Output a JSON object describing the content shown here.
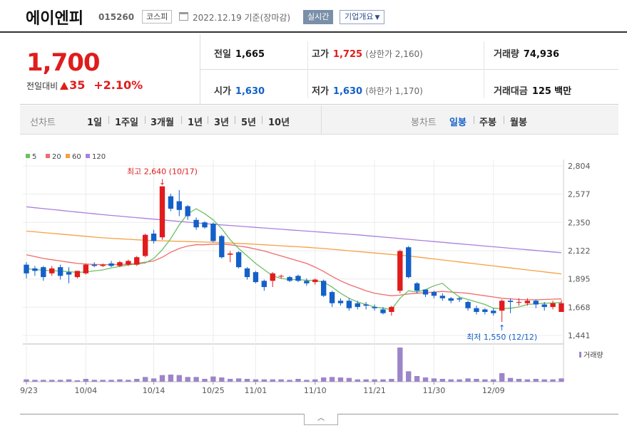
{
  "header": {
    "company_name": "에이엔피",
    "code": "015260",
    "market": "코스피",
    "date_text": "2022.12.19 기준(장마감)",
    "realtime_label": "실시간",
    "company_info_label": "기업개요"
  },
  "quote": {
    "price": "1,700",
    "change_label": "전일대비",
    "change_value": "35",
    "change_pct": "+2.10%",
    "prev_label": "전일",
    "prev_value": "1,665",
    "high_label": "고가",
    "high_value": "1,725",
    "upper_limit": "(상한가 2,160)",
    "volume_label": "거래량",
    "volume_value": "74,936",
    "open_label": "시가",
    "open_value": "1,630",
    "low_label": "저가",
    "low_value": "1,630",
    "lower_limit": "(하한가 1,170)",
    "amount_label": "거래대금",
    "amount_value": "125",
    "amount_unit": "백만"
  },
  "tabs": {
    "line_label": "선차트",
    "line_items": [
      "1일",
      "1주일",
      "3개월",
      "1년",
      "3년",
      "5년",
      "10년"
    ],
    "candle_label": "봉차트",
    "candle_items": [
      "일봉",
      "주봉",
      "월봉"
    ],
    "candle_active": 0
  },
  "colors": {
    "up": "#e01c1c",
    "down": "#1460c8",
    "ma5": "#6dc063",
    "ma20": "#f06c6c",
    "ma60": "#f5a142",
    "ma120": "#a97fe0",
    "volume": "#9d85c9"
  },
  "chart_data": {
    "type": "candlestick",
    "legend": [
      {
        "name": "5",
        "color": "#6dc063"
      },
      {
        "name": "20",
        "color": "#f06c6c"
      },
      {
        "name": "60",
        "color": "#f5a142"
      },
      {
        "name": "120",
        "color": "#a97fe0"
      }
    ],
    "y_ticks": [
      "2,804",
      "2,577",
      "2,350",
      "2,122",
      "1,895",
      "1,668",
      "1,441"
    ],
    "ylim": [
      1441,
      2804
    ],
    "x_ticks": [
      {
        "label": "09/23",
        "index": 0
      },
      {
        "label": "10/04",
        "index": 7
      },
      {
        "label": "10/14",
        "index": 15
      },
      {
        "label": "10/25",
        "index": 22
      },
      {
        "label": "11/01",
        "index": 27
      },
      {
        "label": "11/10",
        "index": 34
      },
      {
        "label": "11/21",
        "index": 41
      },
      {
        "label": "11/30",
        "index": 48
      },
      {
        "label": "12/09",
        "index": 55
      }
    ],
    "annotations": {
      "high": {
        "label": "최고 2,640 (10/17)",
        "index": 16,
        "value": 2640
      },
      "low": {
        "label": "최저 1,550 (12/12)",
        "index": 56,
        "value": 1550
      }
    },
    "volume_legend": "거래량",
    "candles": [
      {
        "o": 2010,
        "c": 1940,
        "h": 2030,
        "l": 1900,
        "v": 5
      },
      {
        "o": 1980,
        "c": 1960,
        "h": 2000,
        "l": 1920,
        "v": 4
      },
      {
        "o": 1990,
        "c": 1910,
        "h": 2000,
        "l": 1880,
        "v": 4
      },
      {
        "o": 1940,
        "c": 1980,
        "h": 2000,
        "l": 1920,
        "v": 4
      },
      {
        "o": 1990,
        "c": 1920,
        "h": 2010,
        "l": 1890,
        "v": 4
      },
      {
        "o": 1950,
        "c": 1930,
        "h": 1990,
        "l": 1860,
        "v": 5
      },
      {
        "o": 1910,
        "c": 1960,
        "h": 1960,
        "l": 1900,
        "v": 3
      },
      {
        "o": 1940,
        "c": 2010,
        "h": 2020,
        "l": 1930,
        "v": 6
      },
      {
        "o": 2010,
        "c": 2000,
        "h": 2030,
        "l": 1990,
        "v": 4
      },
      {
        "o": 2000,
        "c": 2010,
        "h": 2020,
        "l": 1990,
        "v": 4
      },
      {
        "o": 2020,
        "c": 2000,
        "h": 2040,
        "l": 1990,
        "v": 4
      },
      {
        "o": 2000,
        "c": 2030,
        "h": 2040,
        "l": 1990,
        "v": 5
      },
      {
        "o": 2010,
        "c": 2040,
        "h": 2050,
        "l": 2000,
        "v": 4
      },
      {
        "o": 2010,
        "c": 2070,
        "h": 2080,
        "l": 2000,
        "v": 6
      },
      {
        "o": 2080,
        "c": 2250,
        "h": 2260,
        "l": 2070,
        "v": 10
      },
      {
        "o": 2260,
        "c": 2200,
        "h": 2290,
        "l": 2180,
        "v": 7
      },
      {
        "o": 2230,
        "c": 2640,
        "h": 2640,
        "l": 2210,
        "v": 14
      },
      {
        "o": 2560,
        "c": 2460,
        "h": 2580,
        "l": 2440,
        "v": 15
      },
      {
        "o": 2520,
        "c": 2450,
        "h": 2610,
        "l": 2400,
        "v": 14
      },
      {
        "o": 2480,
        "c": 2400,
        "h": 2490,
        "l": 2370,
        "v": 10
      },
      {
        "o": 2370,
        "c": 2310,
        "h": 2390,
        "l": 2290,
        "v": 10
      },
      {
        "o": 2350,
        "c": 2310,
        "h": 2360,
        "l": 2300,
        "v": 6
      },
      {
        "o": 2340,
        "c": 2200,
        "h": 2350,
        "l": 2190,
        "v": 11
      },
      {
        "o": 2240,
        "c": 2070,
        "h": 2250,
        "l": 2060,
        "v": 9
      },
      {
        "o": 2090,
        "c": 2100,
        "h": 2120,
        "l": 2030,
        "v": 6
      },
      {
        "o": 2110,
        "c": 1990,
        "h": 2120,
        "l": 1980,
        "v": 7
      },
      {
        "o": 1980,
        "c": 1910,
        "h": 1990,
        "l": 1890,
        "v": 6
      },
      {
        "o": 1950,
        "c": 1870,
        "h": 1960,
        "l": 1860,
        "v": 5
      },
      {
        "o": 1880,
        "c": 1830,
        "h": 1890,
        "l": 1800,
        "v": 5
      },
      {
        "o": 1880,
        "c": 1940,
        "h": 1950,
        "l": 1830,
        "v": 5
      },
      {
        "o": 1920,
        "c": 1920,
        "h": 1930,
        "l": 1900,
        "v": 5
      },
      {
        "o": 1910,
        "c": 1880,
        "h": 1920,
        "l": 1870,
        "v": 4
      },
      {
        "o": 1920,
        "c": 1880,
        "h": 1930,
        "l": 1870,
        "v": 6
      },
      {
        "o": 1880,
        "c": 1860,
        "h": 1900,
        "l": 1840,
        "v": 4
      },
      {
        "o": 1870,
        "c": 1890,
        "h": 1900,
        "l": 1850,
        "v": 5
      },
      {
        "o": 1880,
        "c": 1760,
        "h": 1890,
        "l": 1750,
        "v": 9
      },
      {
        "o": 1790,
        "c": 1700,
        "h": 1800,
        "l": 1670,
        "v": 10
      },
      {
        "o": 1720,
        "c": 1700,
        "h": 1740,
        "l": 1680,
        "v": 9
      },
      {
        "o": 1720,
        "c": 1660,
        "h": 1740,
        "l": 1640,
        "v": 8
      },
      {
        "o": 1700,
        "c": 1670,
        "h": 1720,
        "l": 1650,
        "v": 5
      },
      {
        "o": 1690,
        "c": 1680,
        "h": 1710,
        "l": 1650,
        "v": 5
      },
      {
        "o": 1670,
        "c": 1660,
        "h": 1690,
        "l": 1640,
        "v": 5
      },
      {
        "o": 1650,
        "c": 1620,
        "h": 1670,
        "l": 1610,
        "v": 5
      },
      {
        "o": 1630,
        "c": 1670,
        "h": 1680,
        "l": 1600,
        "v": 6
      },
      {
        "o": 1800,
        "c": 2120,
        "h": 2130,
        "l": 1780,
        "v": 72
      },
      {
        "o": 2150,
        "c": 1910,
        "h": 2160,
        "l": 1900,
        "v": 22
      },
      {
        "o": 1860,
        "c": 1800,
        "h": 1870,
        "l": 1780,
        "v": 12
      },
      {
        "o": 1810,
        "c": 1770,
        "h": 1810,
        "l": 1750,
        "v": 9
      },
      {
        "o": 1790,
        "c": 1760,
        "h": 1800,
        "l": 1740,
        "v": 7
      },
      {
        "o": 1760,
        "c": 1740,
        "h": 1780,
        "l": 1720,
        "v": 6
      },
      {
        "o": 1740,
        "c": 1720,
        "h": 1750,
        "l": 1700,
        "v": 5
      },
      {
        "o": 1740,
        "c": 1730,
        "h": 1750,
        "l": 1710,
        "v": 5
      },
      {
        "o": 1710,
        "c": 1660,
        "h": 1720,
        "l": 1640,
        "v": 7
      },
      {
        "o": 1660,
        "c": 1630,
        "h": 1680,
        "l": 1610,
        "v": 6
      },
      {
        "o": 1650,
        "c": 1630,
        "h": 1660,
        "l": 1610,
        "v": 5
      },
      {
        "o": 1640,
        "c": 1620,
        "h": 1660,
        "l": 1600,
        "v": 5
      },
      {
        "o": 1640,
        "c": 1720,
        "h": 1730,
        "l": 1550,
        "v": 18
      },
      {
        "o": 1720,
        "c": 1710,
        "h": 1740,
        "l": 1620,
        "v": 8
      },
      {
        "o": 1710,
        "c": 1710,
        "h": 1740,
        "l": 1680,
        "v": 6
      },
      {
        "o": 1700,
        "c": 1720,
        "h": 1740,
        "l": 1680,
        "v": 5
      },
      {
        "o": 1720,
        "c": 1690,
        "h": 1730,
        "l": 1660,
        "v": 6
      },
      {
        "o": 1690,
        "c": 1670,
        "h": 1710,
        "l": 1640,
        "v": 5
      },
      {
        "o": 1670,
        "c": 1700,
        "h": 1720,
        "l": 1650,
        "v": 5
      },
      {
        "o": 1630,
        "c": 1700,
        "h": 1725,
        "l": 1630,
        "v": 7
      }
    ],
    "ma_series": {
      "ma5": [
        1980,
        1970,
        1965,
        1962,
        1958,
        1954,
        1948,
        1952,
        1960,
        1968,
        1984,
        1996,
        2008,
        2014,
        2024,
        2060,
        2130,
        2220,
        2330,
        2420,
        2460,
        2420,
        2370,
        2300,
        2210,
        2140,
        2080,
        2020,
        1970,
        1920,
        1900,
        1890,
        1890,
        1885,
        1882,
        1870,
        1830,
        1780,
        1740,
        1710,
        1690,
        1670,
        1660,
        1650,
        1740,
        1800,
        1790,
        1810,
        1840,
        1860,
        1800,
        1750,
        1730,
        1710,
        1690,
        1660,
        1655,
        1660,
        1670,
        1690,
        1695,
        1700,
        1702,
        1706
      ],
      "ma20": [
        2090,
        2075,
        2060,
        2050,
        2040,
        2030,
        2020,
        2015,
        2012,
        2010,
        2010,
        2012,
        2015,
        2020,
        2030,
        2040,
        2070,
        2110,
        2140,
        2160,
        2170,
        2170,
        2175,
        2175,
        2170,
        2160,
        2150,
        2135,
        2120,
        2100,
        2080,
        2060,
        2040,
        2020,
        1990,
        1955,
        1915,
        1880,
        1850,
        1825,
        1800,
        1780,
        1770,
        1760,
        1765,
        1775,
        1780,
        1785,
        1790,
        1795,
        1790,
        1785,
        1780,
        1770,
        1760,
        1750,
        1740,
        1735,
        1730,
        1728,
        1728,
        1730,
        1733,
        1735
      ],
      "ma60": [
        2280,
        2274,
        2268,
        2262,
        2256,
        2250,
        2244,
        2238,
        2232,
        2226,
        2222,
        2218,
        2214,
        2210,
        2206,
        2204,
        2202,
        2200,
        2198,
        2196,
        2194,
        2192,
        2190,
        2187,
        2184,
        2181,
        2178,
        2174,
        2170,
        2166,
        2162,
        2158,
        2154,
        2150,
        2145,
        2140,
        2134,
        2128,
        2122,
        2116,
        2110,
        2104,
        2098,
        2092,
        2086,
        2080,
        2072,
        2064,
        2056,
        2048,
        2040,
        2032,
        2024,
        2016,
        2008,
        2000,
        1992,
        1984,
        1976,
        1968,
        1960,
        1952,
        1944,
        1936
      ],
      "ma120": [
        2475,
        2468,
        2461,
        2454,
        2447,
        2440,
        2433,
        2426,
        2419,
        2412,
        2406,
        2400,
        2394,
        2388,
        2382,
        2376,
        2370,
        2364,
        2358,
        2352,
        2346,
        2340,
        2335,
        2330,
        2325,
        2320,
        2315,
        2310,
        2305,
        2300,
        2295,
        2290,
        2285,
        2280,
        2275,
        2270,
        2265,
        2260,
        2255,
        2250,
        2244,
        2238,
        2232,
        2226,
        2220,
        2214,
        2208,
        2202,
        2196,
        2190,
        2184,
        2178,
        2172,
        2166,
        2160,
        2154,
        2148,
        2142,
        2136,
        2130,
        2124,
        2118,
        2112,
        2106
      ]
    }
  }
}
